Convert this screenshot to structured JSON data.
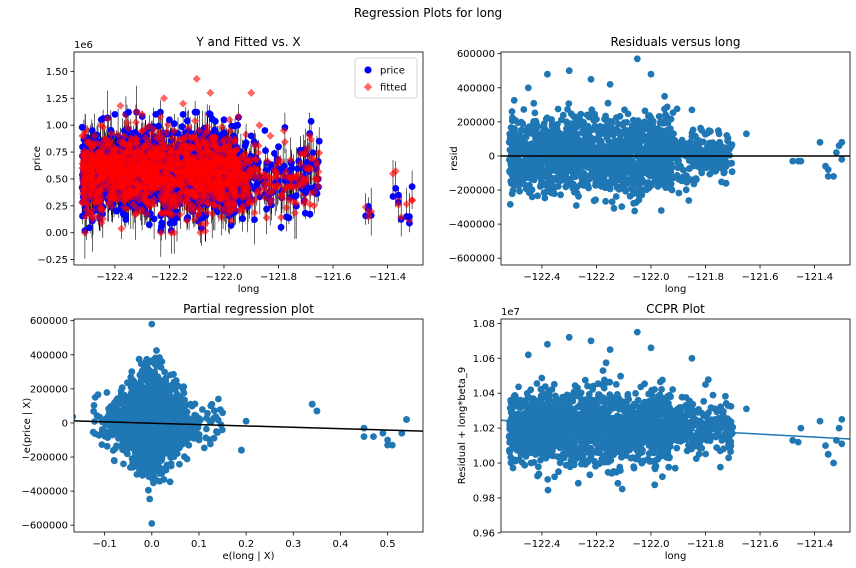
{
  "figure": {
    "title": "Regression Plots for long"
  },
  "colors": {
    "price": "#0000ff",
    "fitted": "#ff0000",
    "scatter": "#1f77b4",
    "line": "#000000"
  },
  "chart_data": [
    {
      "type": "scatter",
      "panel": "top-left",
      "title": "Y and Fitted vs. X",
      "xlabel": "long",
      "ylabel": "price",
      "y_offset_label": "1e6",
      "xlim": [
        -122.55,
        -121.27
      ],
      "ylim": [
        -0.3,
        1.68
      ],
      "xticks": [
        -122.4,
        -122.2,
        -122.0,
        -121.8,
        -121.6,
        -121.4
      ],
      "xtick_labels": [
        "−122.4",
        "−122.2",
        "−122.0",
        "−121.8",
        "−121.6",
        "−121.4"
      ],
      "yticks": [
        -0.25,
        0.0,
        0.25,
        0.5,
        0.75,
        1.0,
        1.25,
        1.5
      ],
      "ytick_labels": [
        "−0.25",
        "0.00",
        "0.25",
        "0.50",
        "0.75",
        "1.00",
        "1.25",
        "1.50"
      ],
      "legend": {
        "placement": "top-right",
        "entries": [
          "price",
          "fitted"
        ]
      },
      "series": [
        {
          "name": "price",
          "marker": "circle",
          "x": [
            -122.52,
            -122.45,
            -122.4,
            -122.35,
            -122.3,
            -122.25,
            -122.2,
            -122.15,
            -122.1,
            -122.05,
            -122.0,
            -121.95,
            -121.9,
            -121.85,
            -121.8,
            -121.75,
            -121.7,
            -121.47,
            -121.36,
            -121.32
          ],
          "y": [
            0.98,
            1.05,
            1.1,
            1.12,
            1.08,
            1.1,
            1.05,
            1.1,
            1.12,
            1.1,
            1.05,
            1.0,
            0.9,
            0.95,
            0.8,
            0.6,
            0.38,
            0.22,
            0.35,
            0.15
          ]
        },
        {
          "name": "fitted",
          "marker": "diamond",
          "x": [
            -122.52,
            -122.45,
            -122.38,
            -122.3,
            -122.22,
            -122.15,
            -122.1,
            -122.05,
            -121.98,
            -121.9,
            -121.87,
            -121.83,
            -121.78,
            -121.7,
            -121.67,
            -121.47,
            -121.36,
            -121.31
          ],
          "y": [
            0.9,
            1.0,
            1.18,
            1.1,
            1.25,
            1.2,
            1.43,
            1.3,
            1.05,
            1.3,
            1.0,
            0.9,
            0.95,
            0.5,
            0.25,
            0.2,
            0.26,
            0.3
          ]
        }
      ]
    },
    {
      "type": "scatter",
      "panel": "top-right",
      "title": "Residuals versus long",
      "xlabel": "long",
      "ylabel": "resid",
      "xlim": [
        -122.55,
        -121.27
      ],
      "ylim": [
        -640000,
        610000
      ],
      "xticks": [
        -122.4,
        -122.2,
        -122.0,
        -121.8,
        -121.6,
        -121.4
      ],
      "xtick_labels": [
        "−122.4",
        "−122.2",
        "−122.0",
        "−121.8",
        "−121.6",
        "−121.4"
      ],
      "yticks": [
        -600000,
        -400000,
        -200000,
        0,
        200000,
        400000,
        600000
      ],
      "ytick_labels": [
        "−600000",
        "−400000",
        "−200000",
        "0",
        "200000",
        "400000",
        "600000"
      ],
      "reference_line_y": 0,
      "series": [
        {
          "x": [
            -122.45,
            -122.38,
            -122.3,
            -122.22,
            -122.15,
            -122.05,
            -122.0,
            -121.95,
            -121.85,
            -121.75,
            -121.45,
            -121.35,
            -121.3
          ],
          "y": [
            400000,
            480000,
            500000,
            450000,
            420000,
            570000,
            480000,
            350000,
            270000,
            130000,
            -30000,
            -120000,
            80000
          ]
        }
      ]
    },
    {
      "type": "scatter",
      "panel": "bottom-left",
      "title": "Partial regression plot",
      "xlabel": "e(long | X)",
      "ylabel": "e(price | X)",
      "xlim": [
        -0.165,
        0.575
      ],
      "ylim": [
        -640000,
        610000
      ],
      "xticks": [
        -0.1,
        0.0,
        0.1,
        0.2,
        0.3,
        0.4,
        0.5
      ],
      "xtick_labels": [
        "−0.1",
        "0.0",
        "0.1",
        "0.2",
        "0.3",
        "0.4",
        "0.5"
      ],
      "yticks": [
        -600000,
        -400000,
        -200000,
        0,
        200000,
        400000,
        600000
      ],
      "ytick_labels": [
        "−600000",
        "−400000",
        "−200000",
        "0",
        "200000",
        "400000",
        "600000"
      ],
      "fit_line": {
        "x": [
          -0.165,
          0.575
        ],
        "y": [
          12000,
          -48000
        ]
      },
      "series": [
        {
          "x": [
            -0.12,
            -0.08,
            0.0,
            0.0,
            0.05,
            0.1,
            0.15,
            0.19,
            0.34,
            0.35,
            0.45,
            0.5,
            0.54
          ],
          "y": [
            150000,
            -220000,
            580000,
            -590000,
            200000,
            -100000,
            60000,
            -160000,
            110000,
            70000,
            -80000,
            -130000,
            20000
          ]
        }
      ]
    },
    {
      "type": "scatter",
      "panel": "bottom-right",
      "title": "CCPR Plot",
      "xlabel": "long",
      "ylabel": "Residual + long*beta_9",
      "y_offset_label": "1e7",
      "xlim": [
        -122.55,
        -121.27
      ],
      "ylim": [
        0.9605,
        1.0825
      ],
      "xticks": [
        -122.4,
        -122.2,
        -122.0,
        -121.8,
        -121.6,
        -121.4
      ],
      "xtick_labels": [
        "−122.4",
        "−122.2",
        "−122.0",
        "−121.8",
        "−121.6",
        "−121.4"
      ],
      "yticks": [
        0.96,
        0.98,
        1.0,
        1.02,
        1.04,
        1.06,
        1.08
      ],
      "ytick_labels": [
        "0.96",
        "0.98",
        "1.00",
        "1.02",
        "1.04",
        "1.06",
        "1.08"
      ],
      "fit_line": {
        "x": [
          -122.55,
          -121.27
        ],
        "y": [
          1.0245,
          1.0138
        ]
      },
      "series": [
        {
          "x": [
            -122.45,
            -122.38,
            -122.3,
            -122.22,
            -122.15,
            -122.05,
            -122.0,
            -121.85,
            -121.8,
            -121.75,
            -121.45,
            -121.35,
            -121.3
          ],
          "y": [
            1.062,
            1.068,
            1.072,
            1.07,
            1.065,
            1.075,
            1.066,
            1.06,
            1.045,
            1.03,
            1.02,
            1.005,
            1.025
          ]
        }
      ]
    }
  ]
}
